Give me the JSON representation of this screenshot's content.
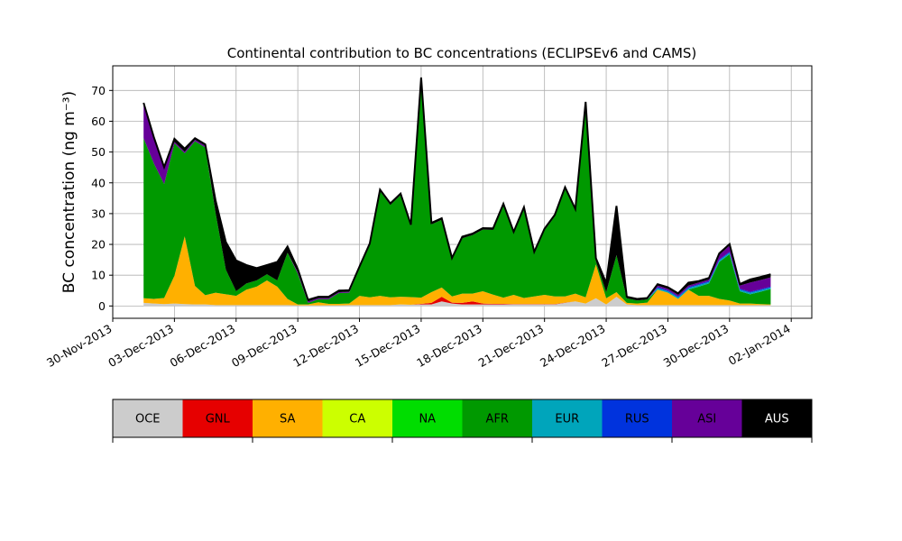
{
  "chart_data": {
    "type": "area",
    "title": "Continental contribution to BC concentrations (ECLIPSEv6 and CAMS)",
    "ylabel": "BC concentration (ng m⁻³)",
    "xlabel": "",
    "ylim": [
      -4,
      78
    ],
    "yticks": [
      0,
      10,
      20,
      30,
      40,
      50,
      60,
      70
    ],
    "xlim": [
      "2013-11-30T00:00",
      "2014-01-03T00:00"
    ],
    "xticks": [
      "2013-11-30",
      "2013-12-03",
      "2013-12-06",
      "2013-12-09",
      "2013-12-12",
      "2013-12-15",
      "2013-12-18",
      "2013-12-21",
      "2013-12-24",
      "2013-12-27",
      "2013-12-30",
      "2014-01-02"
    ],
    "xtick_labels": [
      "30-Nov-2013",
      "03-Dec-2013",
      "06-Dec-2013",
      "09-Dec-2013",
      "12-Dec-2013",
      "15-Dec-2013",
      "18-Dec-2013",
      "21-Dec-2013",
      "24-Dec-2013",
      "27-Dec-2013",
      "30-Dec-2013",
      "02-Jan-2014"
    ],
    "grid": true,
    "stacked": true,
    "x": [
      "2013-12-01T12:00",
      "2013-12-02T00:00",
      "2013-12-02T12:00",
      "2013-12-03T00:00",
      "2013-12-03T12:00",
      "2013-12-04T00:00",
      "2013-12-04T12:00",
      "2013-12-05T00:00",
      "2013-12-05T12:00",
      "2013-12-06T00:00",
      "2013-12-06T12:00",
      "2013-12-07T00:00",
      "2013-12-07T12:00",
      "2013-12-08T00:00",
      "2013-12-08T12:00",
      "2013-12-09T00:00",
      "2013-12-09T12:00",
      "2013-12-10T00:00",
      "2013-12-10T12:00",
      "2013-12-11T00:00",
      "2013-12-11T12:00",
      "2013-12-12T00:00",
      "2013-12-12T12:00",
      "2013-12-13T00:00",
      "2013-12-13T12:00",
      "2013-12-14T00:00",
      "2013-12-14T12:00",
      "2013-12-15T00:00",
      "2013-12-15T12:00",
      "2013-12-16T00:00",
      "2013-12-16T12:00",
      "2013-12-17T00:00",
      "2013-12-17T12:00",
      "2013-12-18T00:00",
      "2013-12-18T12:00",
      "2013-12-19T00:00",
      "2013-12-19T12:00",
      "2013-12-20T00:00",
      "2013-12-20T12:00",
      "2013-12-21T00:00",
      "2013-12-21T12:00",
      "2013-12-22T00:00",
      "2013-12-22T12:00",
      "2013-12-23T00:00",
      "2013-12-23T12:00",
      "2013-12-24T00:00",
      "2013-12-24T12:00",
      "2013-12-25T00:00",
      "2013-12-25T12:00",
      "2013-12-26T00:00",
      "2013-12-26T12:00",
      "2013-12-27T00:00",
      "2013-12-27T12:00",
      "2013-12-28T00:00",
      "2013-12-28T12:00",
      "2013-12-29T00:00",
      "2013-12-29T12:00",
      "2013-12-30T00:00",
      "2013-12-30T12:00",
      "2013-12-31T00:00",
      "2013-12-31T12:00",
      "2014-01-01T00:00"
    ],
    "series": [
      {
        "name": "OCE",
        "color": "#cccccc",
        "values": [
          1,
          0.8,
          0.6,
          0.8,
          0.6,
          0.5,
          0.5,
          0.3,
          0.3,
          0.3,
          0.3,
          0.3,
          0.3,
          0.3,
          0.3,
          0.2,
          0.2,
          0.2,
          0.2,
          0.2,
          0.3,
          0.3,
          0.3,
          0.3,
          0.3,
          0.5,
          0.4,
          0.5,
          0.5,
          1.5,
          0.8,
          0.5,
          0.5,
          0.5,
          0.5,
          0.5,
          0.5,
          0.5,
          0.5,
          0.5,
          0.5,
          1,
          1.5,
          0.8,
          2.5,
          0.5,
          3,
          0.5,
          0.3,
          0.3,
          0.3,
          0.3,
          0.3,
          0.3,
          0.3,
          0.3,
          0.3,
          0.3,
          0.3,
          0.3,
          0.3,
          0.3
        ]
      },
      {
        "name": "GNL",
        "color": "#e60000",
        "values": [
          0,
          0,
          0,
          0,
          0,
          0,
          0,
          0,
          0,
          0,
          0,
          0,
          0,
          0,
          0,
          0,
          0,
          0,
          0,
          0,
          0,
          0,
          0,
          0,
          0,
          0,
          0,
          0.2,
          0.5,
          1.5,
          0.3,
          0.5,
          1,
          0.3,
          0.2,
          0.2,
          0.1,
          0.1,
          0.1,
          0.1,
          0.1,
          0.1,
          0,
          0,
          0,
          0,
          0,
          0,
          0,
          0,
          0,
          0,
          0,
          0,
          0,
          0,
          0,
          0,
          0,
          0,
          0,
          0
        ]
      },
      {
        "name": "SA",
        "color": "#ffb000",
        "values": [
          1.5,
          1.5,
          2,
          9,
          22,
          6,
          3,
          4,
          3.5,
          3,
          5,
          6,
          8,
          6,
          2,
          0.3,
          0.3,
          1,
          0.5,
          0.5,
          0.5,
          3,
          2.5,
          3,
          2.5,
          2.5,
          2.5,
          2,
          3.5,
          3,
          2,
          3,
          2.5,
          4,
          3,
          2,
          3,
          2,
          2.5,
          3,
          2.5,
          2,
          2.5,
          2,
          11,
          2,
          1.5,
          0.5,
          0.5,
          0.8,
          5,
          4,
          2,
          5,
          3,
          3,
          2,
          1.5,
          0.5,
          0.5,
          0.3,
          0.2
        ]
      },
      {
        "name": "CA",
        "color": "#ccff00",
        "values": [
          0,
          0,
          0,
          0,
          0,
          0,
          0,
          0,
          0,
          0,
          0,
          0,
          0,
          0,
          0,
          0,
          0,
          0,
          0,
          0,
          0,
          0,
          0,
          0,
          0,
          0,
          0,
          0,
          0,
          0,
          0,
          0,
          0,
          0,
          0,
          0,
          0,
          0,
          0,
          0,
          0,
          0,
          0,
          0,
          0,
          0,
          0,
          0,
          0,
          0,
          0,
          0,
          0,
          0,
          0,
          0,
          0,
          0,
          0,
          0,
          0,
          0
        ]
      },
      {
        "name": "NA",
        "color": "#00dd00",
        "values": [
          0,
          0,
          0,
          0,
          0,
          0,
          0,
          0,
          0,
          0,
          0,
          0,
          0,
          0,
          0,
          0,
          0,
          0,
          0,
          0,
          0,
          0,
          0,
          0,
          0,
          0,
          0,
          0,
          0,
          0,
          0,
          0,
          0,
          0,
          0,
          0,
          0,
          0,
          0,
          0,
          0,
          0,
          0,
          0,
          0,
          0,
          0,
          0,
          0,
          0,
          0,
          0,
          0,
          0,
          0,
          0,
          0,
          0,
          0,
          0,
          0,
          0
        ]
      },
      {
        "name": "AFR",
        "color": "#009900",
        "values": [
          52,
          44,
          37,
          43,
          27,
          47,
          48,
          26,
          8,
          1.5,
          2,
          2,
          2,
          2,
          15,
          10,
          0.5,
          1,
          1.5,
          3.5,
          3.5,
          9,
          17,
          34,
          30,
          33,
          23,
          71,
          22,
          22,
          12,
          18,
          19,
          20,
          21,
          30,
          20,
          29,
          14,
          21,
          26,
          35,
          27,
          63,
          1,
          2,
          12,
          1.5,
          1,
          1,
          0,
          0,
          0,
          0,
          3,
          4,
          12,
          15,
          4,
          3,
          4,
          5
        ]
      },
      {
        "name": "EUR",
        "color": "#00a5bb",
        "values": [
          0,
          0,
          0,
          0,
          0,
          0,
          0,
          0,
          0,
          0,
          0,
          0,
          0,
          0,
          0,
          0,
          0,
          0,
          0,
          0,
          0,
          0,
          0,
          0,
          0,
          0,
          0,
          0,
          0,
          0,
          0,
          0,
          0,
          0,
          0,
          0,
          0,
          0,
          0,
          0,
          0,
          0,
          0,
          0,
          0,
          0,
          0,
          0,
          0,
          0,
          0.5,
          0.5,
          0.5,
          0.5,
          0.5,
          0.5,
          0.5,
          0.5,
          0.5,
          0.5,
          0.5,
          0.5
        ]
      },
      {
        "name": "RUS",
        "color": "#0033dd",
        "values": [
          0,
          0,
          0,
          0,
          0,
          0,
          0,
          0,
          0,
          0,
          0,
          0,
          0,
          0,
          0,
          0,
          0,
          0,
          0,
          0,
          0,
          0,
          0,
          0,
          0,
          0,
          0,
          0,
          0,
          0,
          0,
          0,
          0,
          0,
          0,
          0,
          0,
          0,
          0,
          0,
          0,
          0,
          0,
          0,
          0,
          0,
          0,
          0,
          0,
          0,
          0.3,
          0.3,
          0.3,
          0.3,
          0.3,
          0.3,
          0.3,
          0.3,
          0.3,
          0.3,
          0.3,
          0.3
        ]
      },
      {
        "name": "ASI",
        "color": "#660099",
        "values": [
          11,
          8,
          5,
          0.5,
          0.5,
          0.5,
          0.5,
          0,
          0,
          0,
          0,
          0,
          0,
          0,
          0,
          0.5,
          0.5,
          0.3,
          0.3,
          0.3,
          0.3,
          0,
          0,
          0,
          0,
          0,
          0,
          0,
          0,
          0,
          0,
          0,
          0,
          0,
          0,
          0,
          0,
          0,
          0,
          0,
          0,
          0,
          0,
          0,
          0,
          0,
          0,
          0,
          0,
          0,
          0.5,
          0.5,
          0.5,
          0.5,
          0.5,
          0.5,
          1.5,
          2,
          1,
          3,
          3,
          3
        ]
      },
      {
        "name": "AUS",
        "color": "#000000",
        "values": [
          0.5,
          0.5,
          0.5,
          1,
          1,
          0.5,
          0.5,
          4,
          9,
          10,
          6,
          4,
          3,
          6,
          2,
          1,
          0.5,
          0.5,
          0.5,
          0.5,
          0.5,
          0.5,
          0.5,
          0.5,
          0.5,
          0.5,
          0.5,
          0.5,
          0.5,
          0.5,
          0.5,
          0.5,
          0.5,
          0.5,
          0.5,
          0.5,
          0.5,
          0.5,
          0.5,
          0.5,
          0.5,
          0.5,
          0.5,
          0.5,
          1,
          3,
          16,
          0.5,
          0.5,
          0.5,
          0.5,
          0.5,
          0.5,
          1,
          0.5,
          0.5,
          0.5,
          0.5,
          0.5,
          1,
          1,
          1
        ]
      }
    ]
  }
}
